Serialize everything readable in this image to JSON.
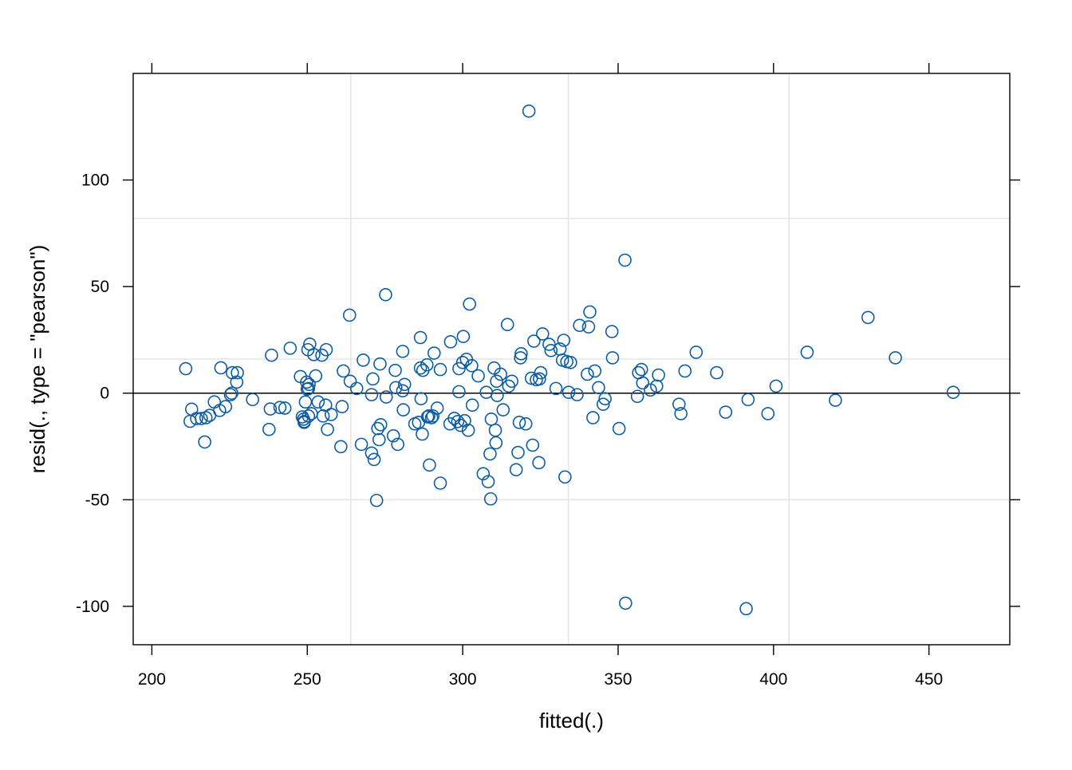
{
  "chart_data": {
    "type": "scatter",
    "title": "",
    "xlabel": "fitted(.)",
    "ylabel": "resid(., type = \"pearson\")",
    "xlim": [
      194,
      476
    ],
    "ylim": [
      -118,
      150
    ],
    "x_ticks": [
      200,
      250,
      300,
      350,
      400,
      450
    ],
    "x_tick_labels": [
      "200",
      "250",
      "300",
      "350",
      "400",
      "450"
    ],
    "y_ticks": [
      -100,
      -50,
      0,
      50,
      100
    ],
    "y_tick_labels": [
      "-100",
      "-50",
      "0",
      "50",
      "100"
    ],
    "grid": true,
    "grid_x": [
      264,
      334,
      405
    ],
    "grid_y": [
      -50,
      16,
      82
    ],
    "reference_line_y": 0,
    "colors": {
      "points": "#0c5da5",
      "grid": "#e6e6e6",
      "axis": "#000000",
      "reference_line": "#000000"
    },
    "series": [
      {
        "points": [
          [
            210.9,
            11.5
          ],
          [
            212.3,
            -13.2
          ],
          [
            212.8,
            -7.5
          ],
          [
            214.4,
            -11.9
          ],
          [
            215.9,
            -11.9
          ],
          [
            217.0,
            -22.9
          ],
          [
            217.4,
            -11.5
          ],
          [
            218.6,
            -10.4
          ],
          [
            220.1,
            -4.1
          ],
          [
            221.8,
            -8.1
          ],
          [
            222.2,
            11.9
          ],
          [
            223.7,
            -6.3
          ],
          [
            225.3,
            -0.7
          ],
          [
            225.7,
            0
          ],
          [
            225.9,
            9.6
          ],
          [
            227.3,
            5.2
          ],
          [
            227.5,
            9.6
          ],
          [
            232.4,
            -3
          ],
          [
            237.7,
            -17
          ],
          [
            238.1,
            -7.4
          ],
          [
            238.5,
            17.8
          ],
          [
            241.2,
            -6.7
          ],
          [
            242.8,
            -7
          ],
          [
            244.5,
            21.1
          ],
          [
            247.8,
            7.8
          ],
          [
            248.4,
            -11.1
          ],
          [
            248.8,
            -12.2
          ],
          [
            249.0,
            -13.3
          ],
          [
            249.0,
            -13.7
          ],
          [
            249.4,
            -4.1
          ],
          [
            249.8,
            5.2
          ],
          [
            250.0,
            1.9
          ],
          [
            250.2,
            20.4
          ],
          [
            250.4,
            -10.7
          ],
          [
            250.4,
            2.2
          ],
          [
            250.6,
            4.1
          ],
          [
            250.8,
            23
          ],
          [
            251.3,
            -9.6
          ],
          [
            252.1,
            18.1
          ],
          [
            252.7,
            8.1
          ],
          [
            253.5,
            -4.1
          ],
          [
            254.7,
            17.8
          ],
          [
            255.1,
            -10.7
          ],
          [
            255.9,
            -5.6
          ],
          [
            256.1,
            20.4
          ],
          [
            256.5,
            -17
          ],
          [
            257.7,
            -10
          ],
          [
            260.8,
            -25.1
          ],
          [
            261.2,
            -6.3
          ],
          [
            261.6,
            10.4
          ],
          [
            263.6,
            36.6
          ],
          [
            263.8,
            5.6
          ],
          [
            265.9,
            2.2
          ],
          [
            267.4,
            -24
          ],
          [
            268.0,
            15.5
          ],
          [
            270.7,
            -0.7
          ],
          [
            270.7,
            -28.1
          ],
          [
            271.1,
            6.7
          ],
          [
            271.5,
            -31.1
          ],
          [
            272.3,
            -50.3
          ],
          [
            272.7,
            -16.6
          ],
          [
            273.1,
            -21.8
          ],
          [
            273.4,
            13.7
          ],
          [
            273.6,
            -14.8
          ],
          [
            275.2,
            46.2
          ],
          [
            275.4,
            -1.8
          ],
          [
            277.7,
            -20
          ],
          [
            278.3,
            10.7
          ],
          [
            278.5,
            2.6
          ],
          [
            279.1,
            -24
          ],
          [
            280.7,
            1.1
          ],
          [
            280.7,
            19.6
          ],
          [
            280.9,
            -7.8
          ],
          [
            281.3,
            4.1
          ],
          [
            284.6,
            -14.4
          ],
          [
            285.8,
            -13.7
          ],
          [
            286.4,
            11.8
          ],
          [
            286.4,
            26.1
          ],
          [
            286.6,
            -2.6
          ],
          [
            287.0,
            -19.2
          ],
          [
            287.2,
            10.7
          ],
          [
            288.5,
            13.3
          ],
          [
            288.7,
            -11.1
          ],
          [
            289.1,
            -10.7
          ],
          [
            289.3,
            -33.7
          ],
          [
            290.0,
            -11.5
          ],
          [
            290.4,
            -10.7
          ],
          [
            290.8,
            18.8
          ],
          [
            291.8,
            -7
          ],
          [
            292.8,
            -42.2
          ],
          [
            292.8,
            11.1
          ],
          [
            295.9,
            -14.4
          ],
          [
            296.1,
            24.1
          ],
          [
            297.3,
            -11.8
          ],
          [
            298.4,
            -13.3
          ],
          [
            298.8,
            11.5
          ],
          [
            298.8,
            0.7
          ],
          [
            299.4,
            -15.1
          ],
          [
            300.0,
            14.4
          ],
          [
            300.2,
            26.6
          ],
          [
            300.6,
            -12.9
          ],
          [
            301.2,
            15.9
          ],
          [
            301.8,
            -17.4
          ],
          [
            302.2,
            41.8
          ],
          [
            302.9,
            12.9
          ],
          [
            303.1,
            -5.6
          ],
          [
            305.0,
            8.1
          ],
          [
            306.6,
            -37.8
          ],
          [
            307.6,
            0.4
          ],
          [
            308.2,
            -41.5
          ],
          [
            308.8,
            -28.5
          ],
          [
            309.0,
            -49.6
          ],
          [
            309.2,
            -12.2
          ],
          [
            310.1,
            11.8
          ],
          [
            310.5,
            -17.4
          ],
          [
            310.7,
            -23.3
          ],
          [
            310.9,
            5.6
          ],
          [
            311.1,
            -1.1
          ],
          [
            312.2,
            8.9
          ],
          [
            313.0,
            -7.8
          ],
          [
            314.4,
            32.2
          ],
          [
            314.8,
            3.3
          ],
          [
            315.8,
            5.6
          ],
          [
            317.2,
            -35.9
          ],
          [
            317.8,
            -27.8
          ],
          [
            318.2,
            -13.7
          ],
          [
            318.6,
            16.6
          ],
          [
            318.8,
            18.5
          ],
          [
            320.3,
            -14.4
          ],
          [
            321.3,
            132.3
          ],
          [
            322.1,
            7
          ],
          [
            322.5,
            -24.4
          ],
          [
            322.9,
            24.4
          ],
          [
            323.7,
            6.3
          ],
          [
            324.5,
            -32.6
          ],
          [
            324.7,
            6.7
          ],
          [
            325.1,
            9.6
          ],
          [
            325.7,
            27.8
          ],
          [
            327.8,
            22.9
          ],
          [
            328.4,
            20
          ],
          [
            330.0,
            2.2
          ],
          [
            331.3,
            20.7
          ],
          [
            332.1,
            15.5
          ],
          [
            332.5,
            24.8
          ],
          [
            332.9,
            -39.3
          ],
          [
            333.5,
            14.8
          ],
          [
            334.1,
            0.4
          ],
          [
            334.7,
            14.4
          ],
          [
            336.8,
            -0.7
          ],
          [
            337.6,
            31.8
          ],
          [
            340.1,
            8.9
          ],
          [
            340.5,
            31.1
          ],
          [
            340.9,
            38.1
          ],
          [
            341.9,
            -11.5
          ],
          [
            342.5,
            10.4
          ],
          [
            343.7,
            2.6
          ],
          [
            345.2,
            -5.2
          ],
          [
            345.8,
            -2.6
          ],
          [
            348.0,
            28.9
          ],
          [
            348.2,
            16.6
          ],
          [
            350.3,
            -16.6
          ],
          [
            352.2,
            62.4
          ],
          [
            352.4,
            -98.5
          ],
          [
            356.2,
            -1.5
          ],
          [
            356.6,
            9.6
          ],
          [
            357.5,
            11.1
          ],
          [
            357.9,
            4.8
          ],
          [
            360.4,
            1.5
          ],
          [
            362.4,
            3.3
          ],
          [
            363.0,
            8.5
          ],
          [
            369.6,
            -5.2
          ],
          [
            370.2,
            -9.6
          ],
          [
            371.5,
            10.4
          ],
          [
            375.1,
            19.2
          ],
          [
            381.7,
            9.6
          ],
          [
            384.6,
            -8.9
          ],
          [
            391.2,
            -101.1
          ],
          [
            391.8,
            -3
          ],
          [
            398.2,
            -9.6
          ],
          [
            400.8,
            3.3
          ],
          [
            410.8,
            19.2
          ],
          [
            419.9,
            -3.3
          ],
          [
            430.4,
            35.5
          ],
          [
            439.2,
            16.6
          ],
          [
            457.8,
            0.4
          ]
        ]
      }
    ]
  }
}
